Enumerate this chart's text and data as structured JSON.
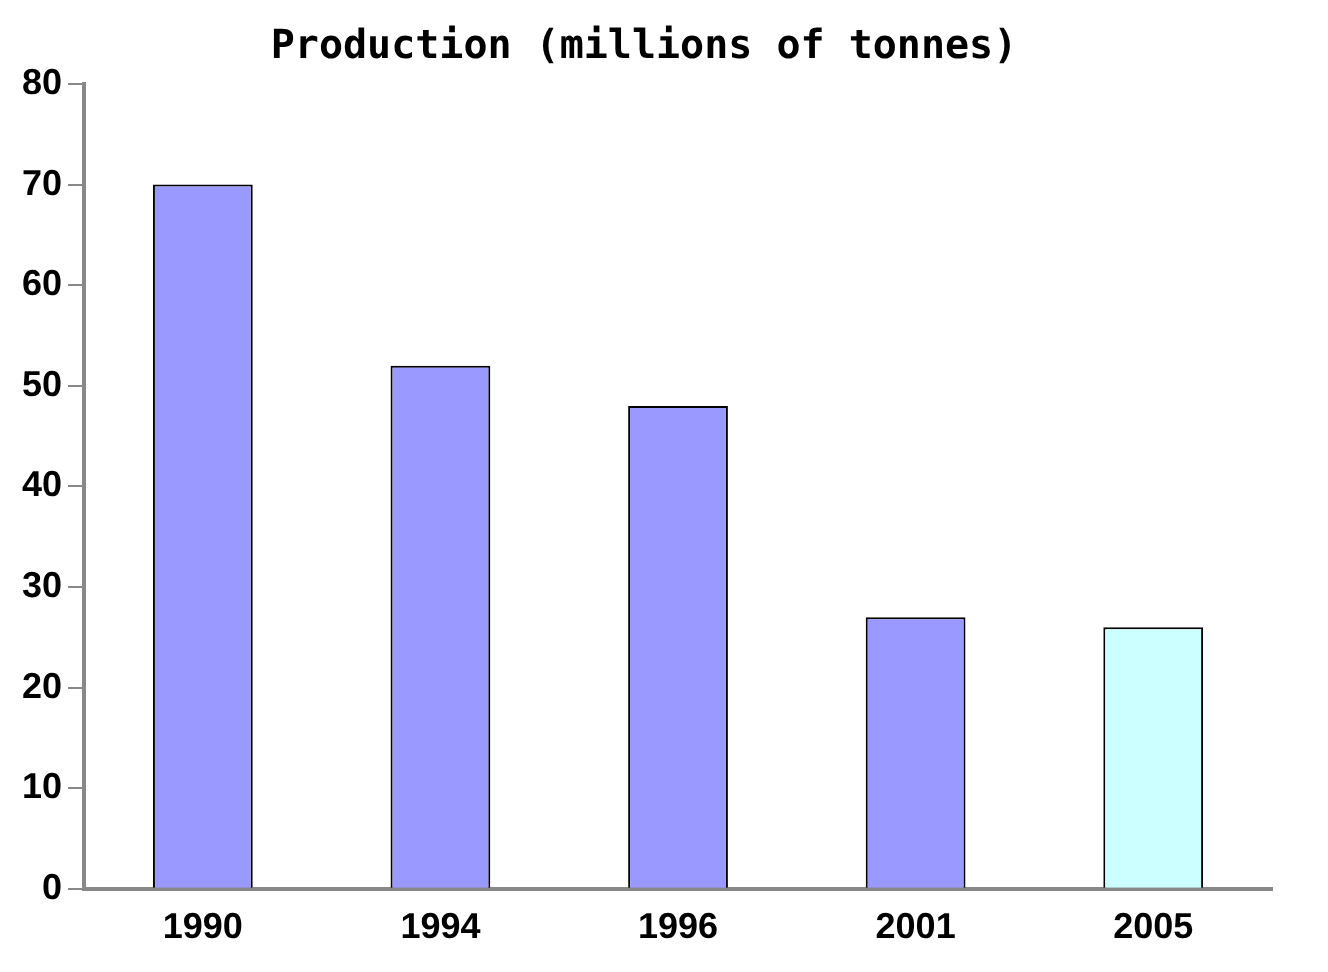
{
  "chart_data": {
    "type": "bar",
    "title": "Production (millions of tonnes)",
    "categories": [
      "1990",
      "1994",
      "1996",
      "2001",
      "2005"
    ],
    "values": [
      70,
      52,
      48,
      27,
      26
    ],
    "colors": [
      "#9999ff",
      "#9999ff",
      "#9999ff",
      "#9999ff",
      "#ccffff"
    ],
    "ylim": [
      0,
      80
    ],
    "yticks": [
      0,
      10,
      20,
      30,
      40,
      50,
      60,
      70,
      80
    ],
    "grid": false,
    "legend": false
  }
}
